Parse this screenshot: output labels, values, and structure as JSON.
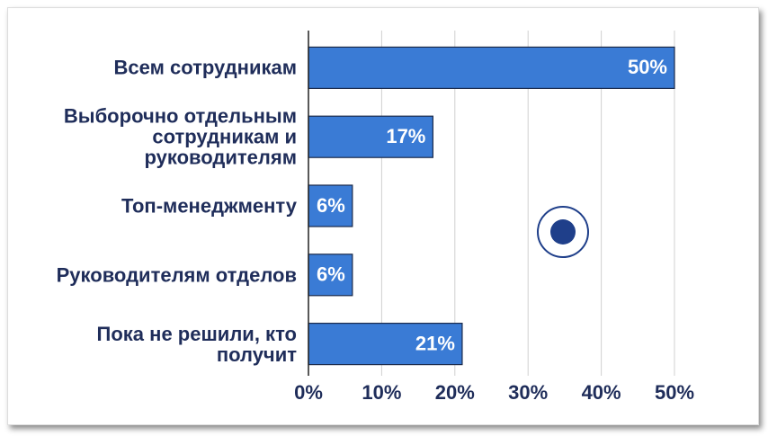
{
  "chart_data": {
    "type": "bar",
    "orientation": "horizontal",
    "categories": [
      "Всем сотрудникам",
      "Выборочно отдельным сотрудникам и руководителям",
      "Топ-менеджменту",
      "Руководителям отделов",
      "Пока не решили, кто получит"
    ],
    "values": [
      50,
      17,
      6,
      6,
      21
    ],
    "value_labels": [
      "50%",
      "17%",
      "6%",
      "6%",
      "21%"
    ],
    "color": "#3a7bd5",
    "xlim": [
      0,
      50
    ],
    "xticks": [
      {
        "value": 0,
        "label": "0%"
      },
      {
        "value": 10,
        "label": "10%"
      },
      {
        "value": 20,
        "label": "20%"
      },
      {
        "value": 30,
        "label": "30%"
      },
      {
        "value": 40,
        "label": "40%"
      },
      {
        "value": 50,
        "label": "50%"
      }
    ],
    "grid": true
  }
}
